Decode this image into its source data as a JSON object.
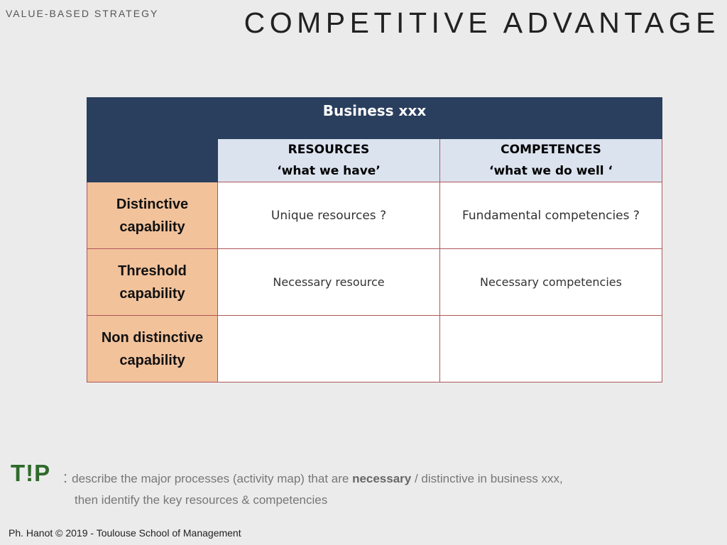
{
  "header": {
    "kicker": "VALUE-BASED STRATEGY",
    "title": "COMPETITIVE ADVANTAGE"
  },
  "matrix": {
    "title": "Business xxx",
    "columns": [
      {
        "line1": "RESOURCES",
        "line2": "‘what we have’"
      },
      {
        "line1": "COMPETENCES",
        "line2": "‘what we do well ‘"
      }
    ],
    "rows": [
      {
        "line1": "Distinctive",
        "line2": "capability",
        "cells": [
          "Unique resources ?",
          "Fundamental competencies ?"
        ]
      },
      {
        "line1": "Threshold",
        "line2": "capability",
        "cells": [
          "Necessary resource",
          "Necessary competencies"
        ]
      },
      {
        "line1": "Non distinctive",
        "line2": "capability",
        "cells": [
          "",
          ""
        ]
      }
    ]
  },
  "tip": {
    "logo": "T!P",
    "colon": ":",
    "text_before": "describe the major processes (activity map) that are ",
    "text_bold": "necessary",
    "text_after": " / distinctive in business xxx,",
    "line2": "then identify the key resources & competencies"
  },
  "footer": {
    "credit": "Ph. Hanot © 2019  -  Toulouse School of Management"
  },
  "colors": {
    "header_bg": "#2a3e5e",
    "column_header_bg": "#dbe3ef",
    "row_header_bg": "#f2c29b",
    "tip_green": "#2f6a2a"
  }
}
